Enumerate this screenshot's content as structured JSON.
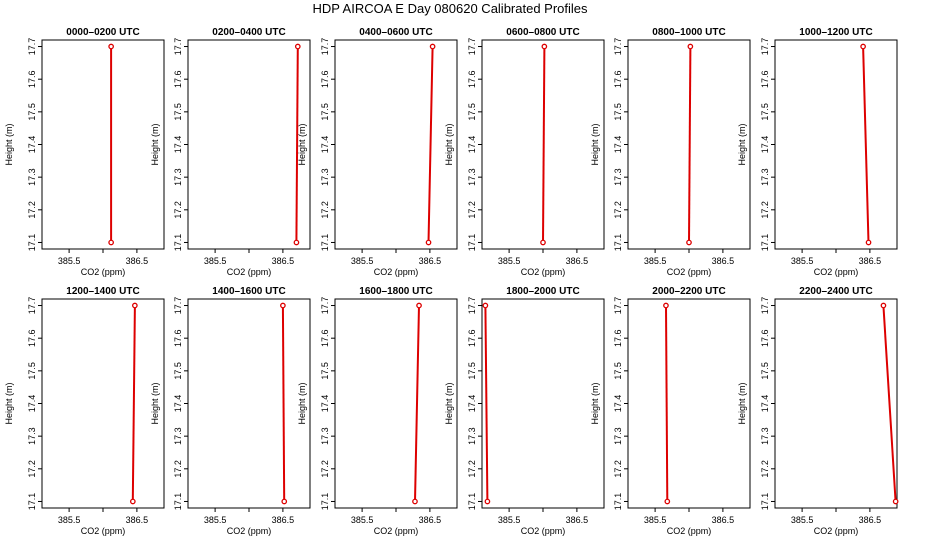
{
  "title": "HDP AIRCOA E  Day 080620  Calibrated Profiles",
  "colors": {
    "profile": "#dd0000",
    "frame": "#000000"
  },
  "chart_data": [
    {
      "type": "line",
      "title": "0000–0200 UTC",
      "xlabel": "CO2 (ppm)",
      "ylabel": "Height (m)",
      "xlim": [
        385.1,
        386.9
      ],
      "ylim": [
        17.08,
        17.72
      ],
      "xticks": [
        "385.5",
        "386.5"
      ],
      "yticks": [
        "17.1",
        "17.2",
        "17.3",
        "17.4",
        "17.5",
        "17.6",
        "17.7"
      ],
      "series": [
        {
          "x": [
            386.12,
            386.12
          ],
          "y": [
            17.1,
            17.7
          ]
        }
      ]
    },
    {
      "type": "line",
      "title": "0200–0400 UTC",
      "xlabel": "CO2 (ppm)",
      "ylabel": "Height (m)",
      "xlim": [
        385.1,
        386.9
      ],
      "ylim": [
        17.08,
        17.72
      ],
      "xticks": [
        "385.5",
        "386.5"
      ],
      "yticks": [
        "17.1",
        "17.2",
        "17.3",
        "17.4",
        "17.5",
        "17.6",
        "17.7"
      ],
      "series": [
        {
          "x": [
            386.7,
            386.72
          ],
          "y": [
            17.1,
            17.7
          ]
        }
      ]
    },
    {
      "type": "line",
      "title": "0400–0600 UTC",
      "xlabel": "CO2 (ppm)",
      "ylabel": "Height (m)",
      "xlim": [
        385.1,
        386.9
      ],
      "ylim": [
        17.08,
        17.72
      ],
      "xticks": [
        "385.5",
        "386.5"
      ],
      "yticks": [
        "17.1",
        "17.2",
        "17.3",
        "17.4",
        "17.5",
        "17.6",
        "17.7"
      ],
      "series": [
        {
          "x": [
            386.48,
            386.54
          ],
          "y": [
            17.1,
            17.7
          ]
        }
      ]
    },
    {
      "type": "line",
      "title": "0600–0800 UTC",
      "xlabel": "CO2 (ppm)",
      "ylabel": "Height (m)",
      "xlim": [
        385.1,
        386.9
      ],
      "ylim": [
        17.08,
        17.72
      ],
      "xticks": [
        "385.5",
        "386.5"
      ],
      "yticks": [
        "17.1",
        "17.2",
        "17.3",
        "17.4",
        "17.5",
        "17.6",
        "17.7"
      ],
      "series": [
        {
          "x": [
            386.0,
            386.02
          ],
          "y": [
            17.1,
            17.7
          ]
        }
      ]
    },
    {
      "type": "line",
      "title": "0800–1000 UTC",
      "xlabel": "CO2 (ppm)",
      "ylabel": "Height (m)",
      "xlim": [
        385.1,
        386.9
      ],
      "ylim": [
        17.08,
        17.72
      ],
      "xticks": [
        "385.5",
        "386.5"
      ],
      "yticks": [
        "17.1",
        "17.2",
        "17.3",
        "17.4",
        "17.5",
        "17.6",
        "17.7"
      ],
      "series": [
        {
          "x": [
            386.0,
            386.02
          ],
          "y": [
            17.1,
            17.7
          ]
        }
      ]
    },
    {
      "type": "line",
      "title": "1000–1200 UTC",
      "xlabel": "CO2 (ppm)",
      "ylabel": "Height (m)",
      "xlim": [
        385.1,
        386.9
      ],
      "ylim": [
        17.08,
        17.72
      ],
      "xticks": [
        "385.5",
        "386.5"
      ],
      "yticks": [
        "17.1",
        "17.2",
        "17.3",
        "17.4",
        "17.5",
        "17.6",
        "17.7"
      ],
      "series": [
        {
          "x": [
            386.48,
            386.4
          ],
          "y": [
            17.1,
            17.7
          ]
        }
      ]
    },
    {
      "type": "line",
      "title": "1200–1400 UTC",
      "xlabel": "CO2 (ppm)",
      "ylabel": "Height (m)",
      "xlim": [
        385.1,
        386.9
      ],
      "ylim": [
        17.08,
        17.72
      ],
      "xticks": [
        "385.5",
        "386.5"
      ],
      "yticks": [
        "17.1",
        "17.2",
        "17.3",
        "17.4",
        "17.5",
        "17.6",
        "17.7"
      ],
      "series": [
        {
          "x": [
            386.44,
            386.47
          ],
          "y": [
            17.1,
            17.7
          ]
        }
      ]
    },
    {
      "type": "line",
      "title": "1400–1600 UTC",
      "xlabel": "CO2 (ppm)",
      "ylabel": "Height (m)",
      "xlim": [
        385.1,
        386.9
      ],
      "ylim": [
        17.08,
        17.72
      ],
      "xticks": [
        "385.5",
        "386.5"
      ],
      "yticks": [
        "17.1",
        "17.2",
        "17.3",
        "17.4",
        "17.5",
        "17.6",
        "17.7"
      ],
      "series": [
        {
          "x": [
            386.52,
            386.5
          ],
          "y": [
            17.1,
            17.7
          ]
        }
      ]
    },
    {
      "type": "line",
      "title": "1600–1800 UTC",
      "xlabel": "CO2 (ppm)",
      "ylabel": "Height (m)",
      "xlim": [
        385.1,
        386.9
      ],
      "ylim": [
        17.08,
        17.72
      ],
      "xticks": [
        "385.5",
        "386.5"
      ],
      "yticks": [
        "17.1",
        "17.2",
        "17.3",
        "17.4",
        "17.5",
        "17.6",
        "17.7"
      ],
      "series": [
        {
          "x": [
            386.28,
            386.34
          ],
          "y": [
            17.1,
            17.7
          ]
        }
      ]
    },
    {
      "type": "line",
      "title": "1800–2000 UTC",
      "xlabel": "CO2 (ppm)",
      "ylabel": "Height (m)",
      "xlim": [
        385.1,
        386.9
      ],
      "ylim": [
        17.08,
        17.72
      ],
      "xticks": [
        "385.5",
        "386.5"
      ],
      "yticks": [
        "17.1",
        "17.2",
        "17.3",
        "17.4",
        "17.5",
        "17.6",
        "17.7"
      ],
      "series": [
        {
          "x": [
            385.18,
            385.15
          ],
          "y": [
            17.1,
            17.7
          ]
        }
      ]
    },
    {
      "type": "line",
      "title": "2000–2200 UTC",
      "xlabel": "CO2 (ppm)",
      "ylabel": "Height (m)",
      "xlim": [
        385.1,
        386.9
      ],
      "ylim": [
        17.08,
        17.72
      ],
      "xticks": [
        "385.5",
        "386.5"
      ],
      "yticks": [
        "17.1",
        "17.2",
        "17.3",
        "17.4",
        "17.5",
        "17.6",
        "17.7"
      ],
      "series": [
        {
          "x": [
            385.68,
            385.66
          ],
          "y": [
            17.1,
            17.7
          ]
        }
      ]
    },
    {
      "type": "line",
      "title": "2200–2400 UTC",
      "xlabel": "CO2 (ppm)",
      "ylabel": "Height (m)",
      "xlim": [
        385.1,
        386.9
      ],
      "ylim": [
        17.08,
        17.72
      ],
      "xticks": [
        "385.5",
        "386.5"
      ],
      "yticks": [
        "17.1",
        "17.2",
        "17.3",
        "17.4",
        "17.5",
        "17.6",
        "17.7"
      ],
      "series": [
        {
          "x": [
            386.88,
            386.7
          ],
          "y": [
            17.1,
            17.7
          ]
        }
      ]
    }
  ]
}
